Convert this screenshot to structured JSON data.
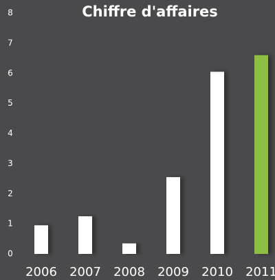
{
  "chart_data": {
    "type": "bar",
    "title": "Chiffre d'affaires",
    "categories": [
      "2006",
      "2007",
      "2008",
      "2009",
      "2010",
      "2011"
    ],
    "values": [
      0.95,
      1.25,
      0.35,
      2.55,
      6.05,
      6.6
    ],
    "colors": [
      "#ffffff",
      "#ffffff",
      "#ffffff",
      "#ffffff",
      "#ffffff",
      "#8dc03f"
    ],
    "ylim": [
      0,
      8
    ],
    "yticks": [
      0,
      1,
      2,
      3,
      4,
      5,
      6,
      7,
      8
    ],
    "grid": false
  }
}
